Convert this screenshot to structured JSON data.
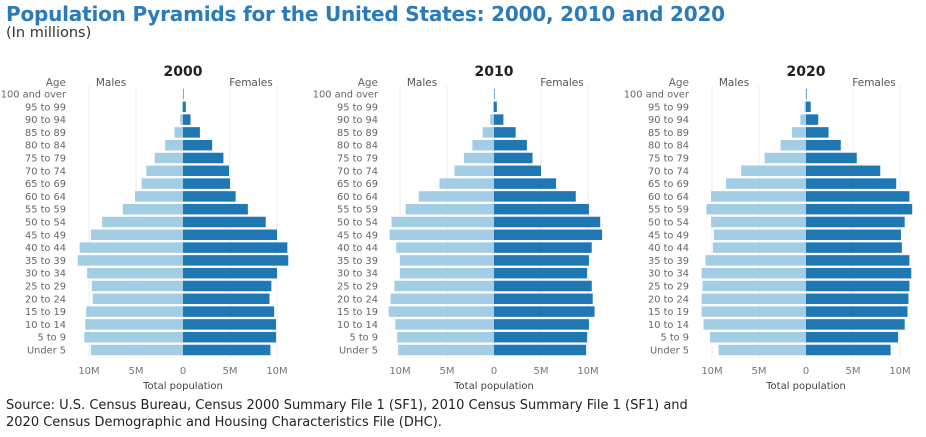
{
  "title": "Population Pyramids for the United States: 2000, 2010 and 2020",
  "subtitle": "(In millions)",
  "source_line1": "Source: U.S. Census Bureau, Census 2000 Summary File 1 (SF1), 2010 Census Summary File 1 (SF1) and",
  "source_line2": "2020 Census Demographic and Housing Characteristics File (DHC).",
  "colors": {
    "males": "#a3cde4",
    "females": "#1f77b4",
    "title": "#2b7bba"
  },
  "chart_data": [
    {
      "type": "bar",
      "title": "2000",
      "ylabel": "Age",
      "xlabel": "Total population",
      "left_label": "Males",
      "right_label": "Females",
      "x_ticks": [
        "10M",
        "5M",
        "0",
        "5M",
        "10M"
      ],
      "xlim": [
        -12,
        12
      ],
      "categories": [
        "100 and over",
        "95 to 99",
        "90 to 94",
        "85 to 89",
        "80 to 84",
        "75 to 79",
        "70 to 74",
        "65 to 69",
        "60 to 64",
        "55 to 59",
        "50 to 54",
        "45 to 49",
        "40 to 44",
        "35 to 39",
        "30 to 34",
        "25 to 29",
        "20 to 24",
        "15 to 19",
        "10 to 14",
        "5 to 9",
        "Under 5"
      ],
      "series": [
        {
          "name": "Males",
          "values": [
            0.01,
            0.1,
            0.3,
            0.9,
            1.9,
            3.0,
            3.9,
            4.4,
            5.1,
            6.4,
            8.6,
            9.8,
            11.0,
            11.2,
            10.2,
            9.7,
            9.6,
            10.3,
            10.4,
            10.5,
            9.8
          ]
        },
        {
          "name": "Females",
          "values": [
            0.05,
            0.3,
            0.8,
            1.8,
            3.1,
            4.3,
            4.9,
            5.0,
            5.6,
            6.9,
            8.8,
            10.0,
            11.1,
            11.2,
            10.0,
            9.4,
            9.2,
            9.7,
            9.9,
            9.9,
            9.3
          ]
        }
      ]
    },
    {
      "type": "bar",
      "title": "2010",
      "ylabel": "Age",
      "xlabel": "Total population",
      "left_label": "Males",
      "right_label": "Females",
      "x_ticks": [
        "10M",
        "5M",
        "0",
        "5M",
        "10M"
      ],
      "xlim": [
        -12,
        12
      ],
      "categories": [
        "100 and over",
        "95 to 99",
        "90 to 94",
        "85 to 89",
        "80 to 84",
        "75 to 79",
        "70 to 74",
        "65 to 69",
        "60 to 64",
        "55 to 59",
        "50 to 54",
        "45 to 49",
        "40 to 44",
        "35 to 39",
        "30 to 34",
        "25 to 29",
        "20 to 24",
        "15 to 19",
        "10 to 14",
        "5 to 9",
        "Under 5"
      ],
      "series": [
        {
          "name": "Males",
          "values": [
            0.01,
            0.1,
            0.4,
            1.2,
            2.3,
            3.2,
            4.2,
            5.8,
            8.0,
            9.4,
            10.9,
            11.1,
            10.4,
            10.0,
            10.0,
            10.6,
            11.0,
            11.2,
            10.5,
            10.3,
            10.2
          ]
        },
        {
          "name": "Females",
          "values": [
            0.05,
            0.3,
            1.0,
            2.3,
            3.5,
            4.1,
            5.0,
            6.6,
            8.7,
            10.1,
            11.3,
            11.5,
            10.4,
            10.1,
            9.9,
            10.4,
            10.5,
            10.7,
            10.1,
            9.9,
            9.8
          ]
        }
      ]
    },
    {
      "type": "bar",
      "title": "2020",
      "ylabel": "Age",
      "xlabel": "Total population",
      "left_label": "Males",
      "right_label": "Females",
      "x_ticks": [
        "10M",
        "5M",
        "0",
        "5M",
        "10M"
      ],
      "xlim": [
        -12,
        12
      ],
      "categories": [
        "100 and over",
        "95 to 99",
        "90 to 94",
        "85 to 89",
        "80 to 84",
        "75 to 79",
        "70 to 74",
        "65 to 69",
        "60 to 64",
        "55 to 59",
        "50 to 54",
        "45 to 49",
        "40 to 44",
        "35 to 39",
        "30 to 34",
        "25 to 29",
        "20 to 24",
        "15 to 19",
        "10 to 14",
        "5 to 9",
        "Under 5"
      ],
      "series": [
        {
          "name": "Males",
          "values": [
            0.02,
            0.15,
            0.6,
            1.5,
            2.7,
            4.4,
            6.9,
            8.5,
            10.1,
            10.6,
            10.1,
            9.8,
            9.9,
            10.7,
            11.1,
            11.0,
            11.1,
            11.1,
            10.9,
            10.2,
            9.3
          ]
        },
        {
          "name": "Females",
          "values": [
            0.07,
            0.5,
            1.3,
            2.4,
            3.7,
            5.4,
            7.9,
            9.6,
            11.0,
            11.3,
            10.5,
            10.1,
            10.2,
            11.0,
            11.2,
            11.0,
            10.9,
            10.8,
            10.5,
            9.8,
            9.0
          ]
        }
      ]
    }
  ]
}
